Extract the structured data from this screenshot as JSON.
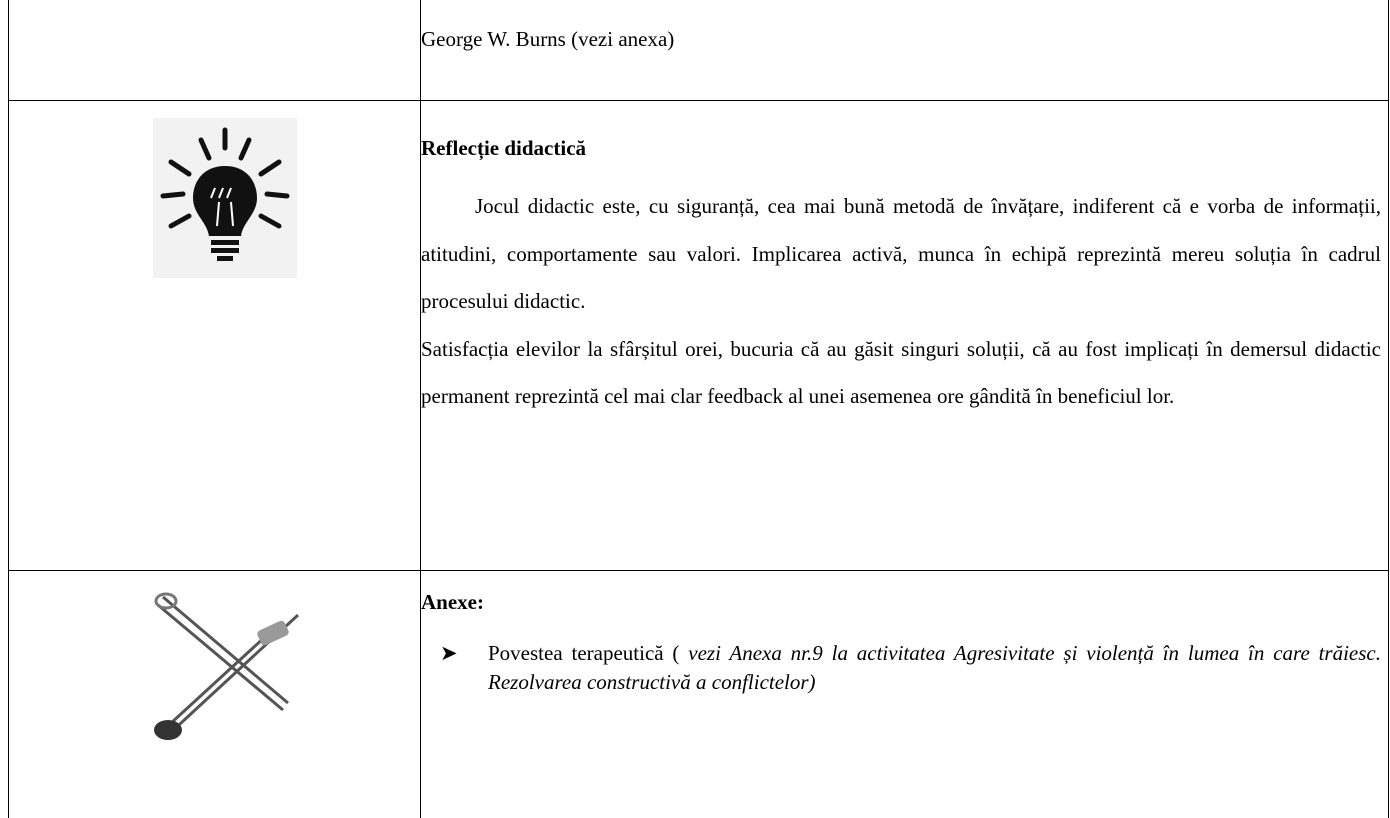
{
  "table": {
    "rows": [
      {
        "text": "George W. Burns (vezi anexa)"
      },
      {
        "heading": "Reflecție didactică",
        "paragraphs": [
          "Jocul didactic este, cu siguranță, cea mai bună metodă de învățare, indiferent că e vorba de informații, atitudini, comportamente sau valori. Implicarea activă, munca în echipă reprezintă mereu soluția în cadrul procesului didactic.",
          "Satisfacția elevilor la sfârșitul orei, bucuria că au găsit singuri soluții, că au fost implicați în demersul didactic permanent reprezintă cel mai clar feedback al unei asemenea ore gândită în beneficiul lor."
        ]
      },
      {
        "heading": "Anexe:",
        "items": [
          {
            "text": "Povestea terapeutică (",
            "italic": "vezi Anexa nr.9 la activitatea Agresivitate și violență în lumea în care trăiesc. Rezolvarea constructivă a conflictelor)"
          }
        ]
      }
    ]
  }
}
